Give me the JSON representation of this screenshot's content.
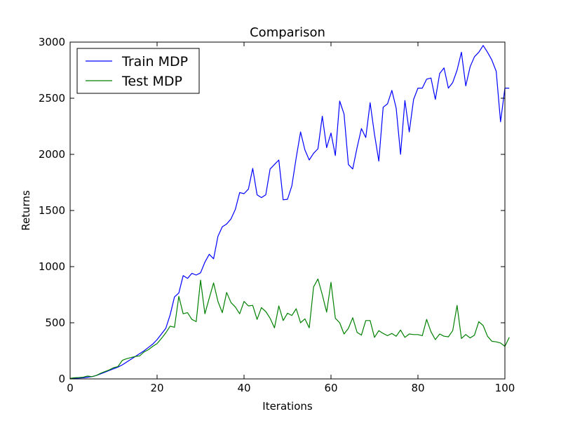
{
  "chart_data": {
    "type": "line",
    "title": "Comparison",
    "xlabel": "Iterations",
    "ylabel": "Returns",
    "xlim": [
      0,
      100
    ],
    "ylim": [
      0,
      3000
    ],
    "xticks": [
      "0",
      "20",
      "40",
      "60",
      "80",
      "100"
    ],
    "yticks": [
      "0",
      "500",
      "1000",
      "1500",
      "2000",
      "2500",
      "3000"
    ],
    "legend_position": "top-left",
    "grid": false,
    "series": [
      {
        "name": "Train MDP",
        "color": "#0000ff",
        "values": [
          0,
          5,
          8,
          10,
          15,
          20,
          30,
          45,
          60,
          75,
          90,
          105,
          125,
          150,
          175,
          200,
          225,
          250,
          280,
          310,
          350,
          400,
          450,
          570,
          730,
          765,
          920,
          895,
          940,
          925,
          945,
          1040,
          1110,
          1070,
          1270,
          1355,
          1380,
          1425,
          1510,
          1660,
          1650,
          1690,
          1875,
          1640,
          1615,
          1640,
          1870,
          1910,
          1950,
          1595,
          1600,
          1720,
          1970,
          2200,
          2040,
          1950,
          2010,
          2050,
          2340,
          2060,
          2190,
          1990,
          2475,
          2360,
          1910,
          1870,
          2060,
          2230,
          2150,
          2460,
          2180,
          1940,
          2420,
          2450,
          2570,
          2410,
          2000,
          2480,
          2200,
          2490,
          2590,
          2590,
          2670,
          2680,
          2490,
          2720,
          2770,
          2590,
          2640,
          2750,
          2910,
          2610,
          2780,
          2870,
          2910,
          2970,
          2910,
          2840,
          2740,
          2290,
          2590,
          2590
        ]
      },
      {
        "name": "Test MDP",
        "color": "#008000",
        "values": [
          5,
          10,
          12,
          15,
          25,
          20,
          30,
          50,
          65,
          80,
          100,
          110,
          165,
          180,
          190,
          200,
          205,
          240,
          260,
          290,
          315,
          360,
          410,
          470,
          460,
          735,
          580,
          590,
          530,
          510,
          880,
          580,
          720,
          855,
          690,
          590,
          770,
          680,
          640,
          580,
          690,
          650,
          655,
          530,
          635,
          600,
          540,
          455,
          650,
          520,
          585,
          565,
          625,
          500,
          535,
          455,
          820,
          890,
          750,
          595,
          860,
          540,
          500,
          400,
          450,
          545,
          415,
          390,
          520,
          520,
          370,
          430,
          405,
          385,
          405,
          380,
          435,
          370,
          400,
          395,
          395,
          385,
          530,
          420,
          350,
          400,
          380,
          375,
          430,
          655,
          360,
          395,
          365,
          390,
          510,
          475,
          380,
          335,
          330,
          320,
          290,
          370
        ]
      }
    ]
  }
}
